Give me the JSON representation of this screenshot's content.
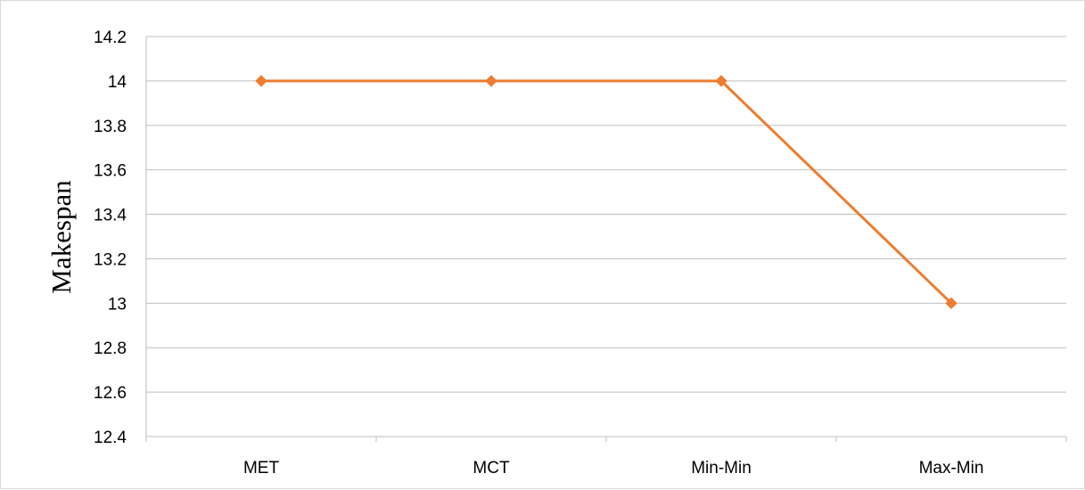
{
  "chart_data": {
    "type": "line",
    "categories": [
      "MET",
      "MCT",
      "Min-Min",
      "Max-Min"
    ],
    "series": [
      {
        "values": [
          14,
          14,
          14,
          13
        ],
        "color": "#ED7D31",
        "marker": "diamond"
      }
    ],
    "title": "",
    "xlabel": "",
    "ylabel": "Makespan",
    "ylim": [
      12.4,
      14.2
    ],
    "yticks": [
      "12.4",
      "12.6",
      "12.8",
      "13",
      "13.2",
      "13.4",
      "13.6",
      "13.8",
      "14",
      "14.2"
    ],
    "grid": "horizontal",
    "legend": "none",
    "gridline_color": "#BFBFBF"
  }
}
